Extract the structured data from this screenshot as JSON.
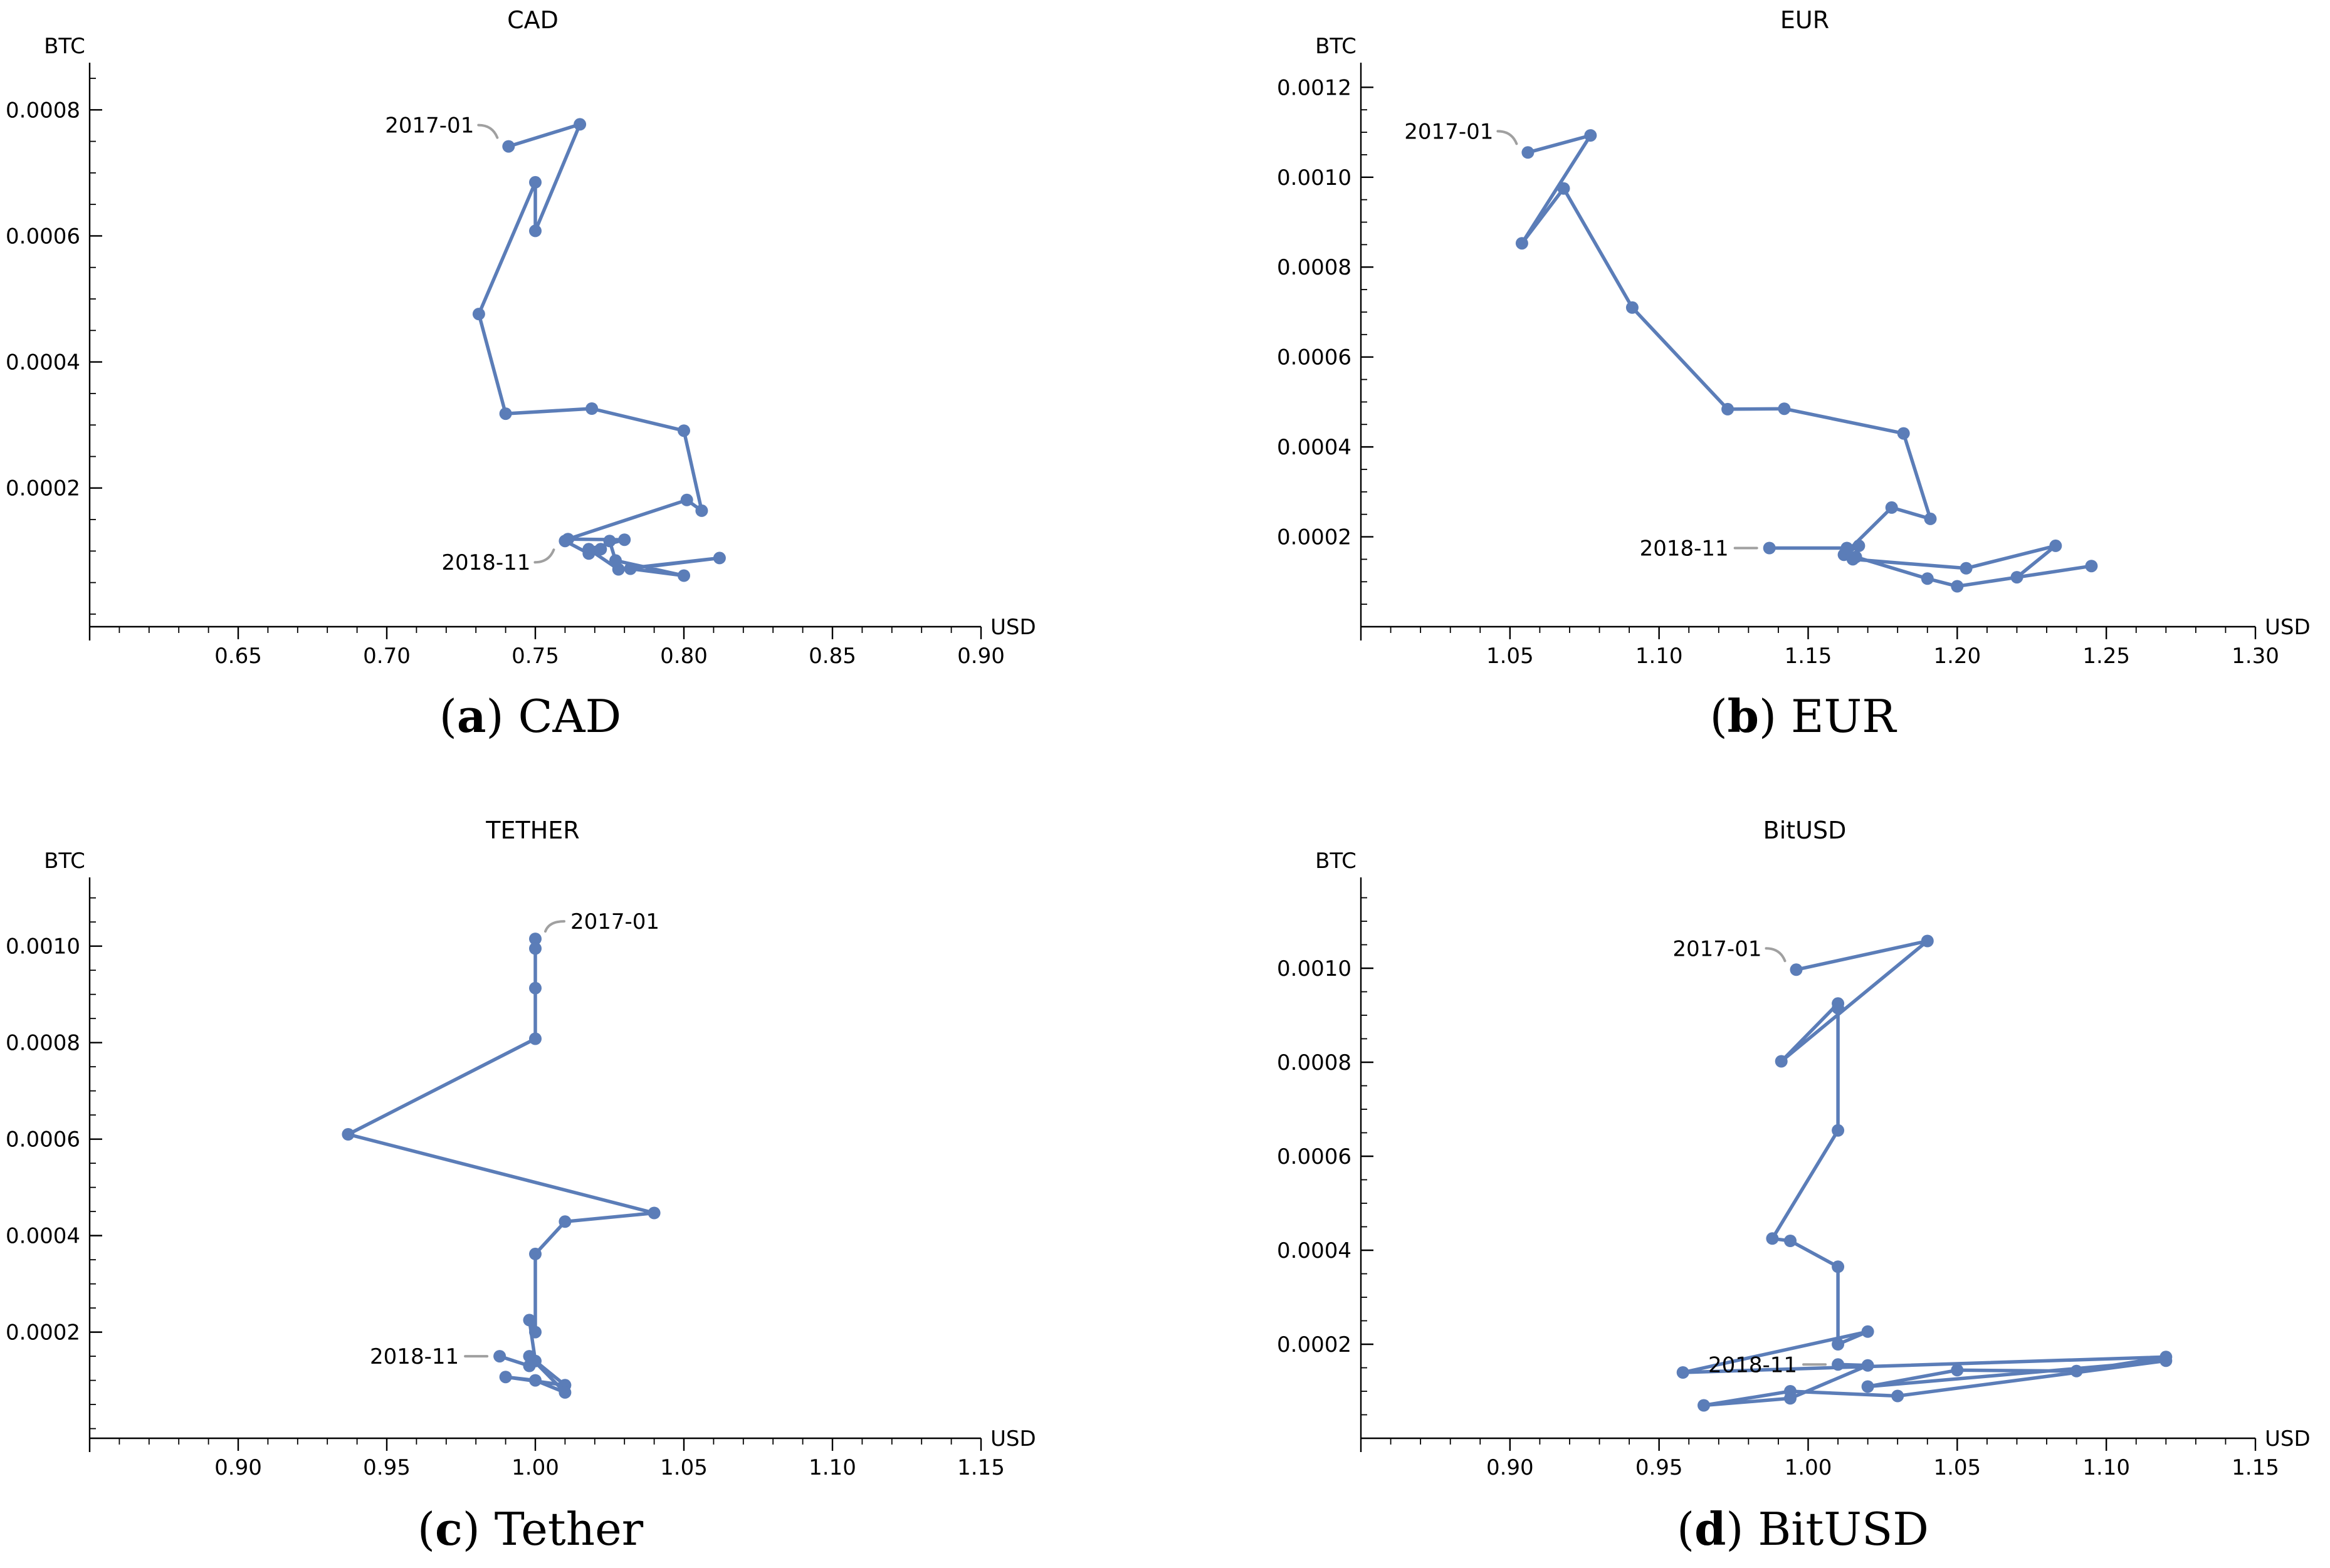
{
  "colors": {
    "series": "#5b7db8",
    "axis": "#000000",
    "callout": "#a0a0a0"
  },
  "chart_data": [
    {
      "type": "line",
      "title": "CAD",
      "caption_letter": "a",
      "caption_text": "CAD",
      "xlabel": "USD",
      "ylabel": "BTC",
      "xlim": [
        0.6,
        0.9
      ],
      "ylim": [
        -2e-05,
        0.00085
      ],
      "xticks": [
        0.65,
        0.7,
        0.75,
        0.8,
        0.85,
        0.9
      ],
      "xtick_labels": [
        "0.65",
        "0.70",
        "0.75",
        "0.80",
        "0.85",
        "0.90"
      ],
      "yticks": [
        0.0002,
        0.0004,
        0.0006,
        0.0008
      ],
      "ytick_labels": [
        "0.0002",
        "0.0004",
        "0.0006",
        "0.0008"
      ],
      "series": [
        {
          "name": "CAD",
          "x": [
            0.741,
            0.765,
            0.75,
            0.75,
            0.731,
            0.74,
            0.769,
            0.8,
            0.806,
            0.801,
            0.761,
            0.78,
            0.768,
            0.778,
            0.812,
            0.782,
            0.8,
            0.777,
            0.775,
            0.772,
            0.768,
            0.76
          ],
          "y": [
            0.000742,
            0.000777,
            0.000608,
            0.000685,
            0.000476,
            0.000318,
            0.000326,
            0.000291,
            0.000164,
            0.000181,
            0.000119,
            0.000118,
            0.000103,
            7.1e-05,
            8.9e-05,
            7.2e-05,
            6.1e-05,
            8.5e-05,
            0.000116,
            0.000103,
            9.6e-05,
            0.000116
          ]
        }
      ],
      "annotations": [
        {
          "text": "2017-01",
          "point_index": 0,
          "side": "left-up"
        },
        {
          "text": "2018-11",
          "point_index": 21,
          "side": "left-down"
        }
      ]
    },
    {
      "type": "line",
      "title": "EUR",
      "caption_letter": "b",
      "caption_text": "EUR",
      "xlabel": "USD",
      "ylabel": "BTC",
      "xlim": [
        1.0,
        1.3
      ],
      "ylim": [
        0.0,
        0.00122
      ],
      "xticks": [
        1.05,
        1.1,
        1.15,
        1.2,
        1.25,
        1.3
      ],
      "xtick_labels": [
        "1.05",
        "1.10",
        "1.15",
        "1.20",
        "1.25",
        "1.30"
      ],
      "yticks": [
        0.0002,
        0.0004,
        0.0006,
        0.0008,
        0.001,
        0.0012
      ],
      "ytick_labels": [
        "0.0002",
        "0.0004",
        "0.0006",
        "0.0008",
        "0.0010",
        "0.0012"
      ],
      "series": [
        {
          "name": "EUR",
          "x": [
            1.056,
            1.077,
            1.054,
            1.068,
            1.091,
            1.123,
            1.142,
            1.182,
            1.191,
            1.178,
            1.162,
            1.167,
            1.165,
            1.203,
            1.233,
            1.22,
            1.245,
            1.2,
            1.19,
            1.166,
            1.163,
            1.137
          ],
          "y": [
            0.001055,
            0.001093,
            0.000853,
            0.000975,
            0.00071,
            0.000484,
            0.000485,
            0.00043,
            0.00024,
            0.000265,
            0.00016,
            0.00018,
            0.00015,
            0.00013,
            0.00018,
            0.00011,
            0.000135,
            9e-05,
            0.000107,
            0.000155,
            0.000175,
            0.000175
          ]
        }
      ],
      "annotations": [
        {
          "text": "2017-01",
          "point_index": 0,
          "side": "left-up"
        },
        {
          "text": "2018-11",
          "point_index": 21,
          "side": "left"
        }
      ]
    },
    {
      "type": "line",
      "title": "TETHER",
      "caption_letter": "c",
      "caption_text": "Tether",
      "xlabel": "USD",
      "ylabel": "BTC",
      "xlim": [
        0.85,
        1.15
      ],
      "ylim": [
        -2e-05,
        0.00111
      ],
      "xticks": [
        0.9,
        0.95,
        1.0,
        1.05,
        1.1,
        1.15
      ],
      "xtick_labels": [
        "0.90",
        "0.95",
        "1.00",
        "1.05",
        "1.10",
        "1.15"
      ],
      "yticks": [
        0.0002,
        0.0004,
        0.0006,
        0.0008,
        0.001
      ],
      "ytick_labels": [
        "0.0002",
        "0.0004",
        "0.0006",
        "0.0008",
        "0.0010"
      ],
      "series": [
        {
          "name": "Tether",
          "x": [
            1.0,
            1.0,
            1.0,
            1.0,
            0.937,
            1.04,
            1.01,
            1.0,
            1.0,
            0.998,
            1.0,
            1.01,
            0.99,
            1.0,
            1.01,
            0.998,
            0.998,
            0.988
          ],
          "y": [
            0.001015,
            0.000995,
            0.000913,
            0.000808,
            0.00061,
            0.000447,
            0.000429,
            0.000362,
            0.0002,
            0.000225,
            0.00014,
            9e-05,
            0.000107,
            0.0001,
            7.5e-05,
            0.00015,
            0.00013,
            0.00015
          ]
        }
      ],
      "annotations": [
        {
          "text": "2017-01",
          "point_index": 0,
          "side": "right-up"
        },
        {
          "text": "2018-11",
          "point_index": 17,
          "side": "left"
        }
      ]
    },
    {
      "type": "line",
      "title": "BitUSD",
      "caption_letter": "d",
      "caption_text": "BitUSD",
      "xlabel": "USD",
      "ylabel": "BTC",
      "xlim": [
        0.85,
        1.15
      ],
      "ylim": [
        0.0,
        0.00116
      ],
      "xticks": [
        0.9,
        0.95,
        1.0,
        1.05,
        1.1,
        1.15
      ],
      "xtick_labels": [
        "0.90",
        "0.95",
        "1.00",
        "1.05",
        "1.10",
        "1.15"
      ],
      "yticks": [
        0.0002,
        0.0004,
        0.0006,
        0.0008,
        0.001
      ],
      "ytick_labels": [
        "0.0002",
        "0.0004",
        "0.0006",
        "0.0008",
        "0.0010"
      ],
      "series": [
        {
          "name": "BitUSD",
          "x": [
            0.996,
            1.04,
            0.991,
            1.01,
            1.01,
            1.01,
            0.988,
            0.994,
            1.01,
            1.01,
            1.02,
            0.958,
            1.12,
            1.09,
            1.05,
            1.02,
            1.12,
            1.03,
            0.994,
            0.965,
            0.994,
            1.02,
            1.01
          ],
          "y": [
            0.000997,
            0.001058,
            0.000802,
            0.000925,
            0.000915,
            0.000655,
            0.000425,
            0.00042,
            0.000365,
            0.0002,
            0.000227,
            0.00014,
            0.000173,
            0.000143,
            0.000145,
            0.00011,
            0.000165,
            9e-05,
            0.0001,
            7e-05,
            8.5e-05,
            0.000155,
            0.000157
          ]
        }
      ],
      "annotations": [
        {
          "text": "2017-01",
          "point_index": 0,
          "side": "left-up"
        },
        {
          "text": "2018-11",
          "point_index": 22,
          "side": "left"
        }
      ]
    }
  ]
}
